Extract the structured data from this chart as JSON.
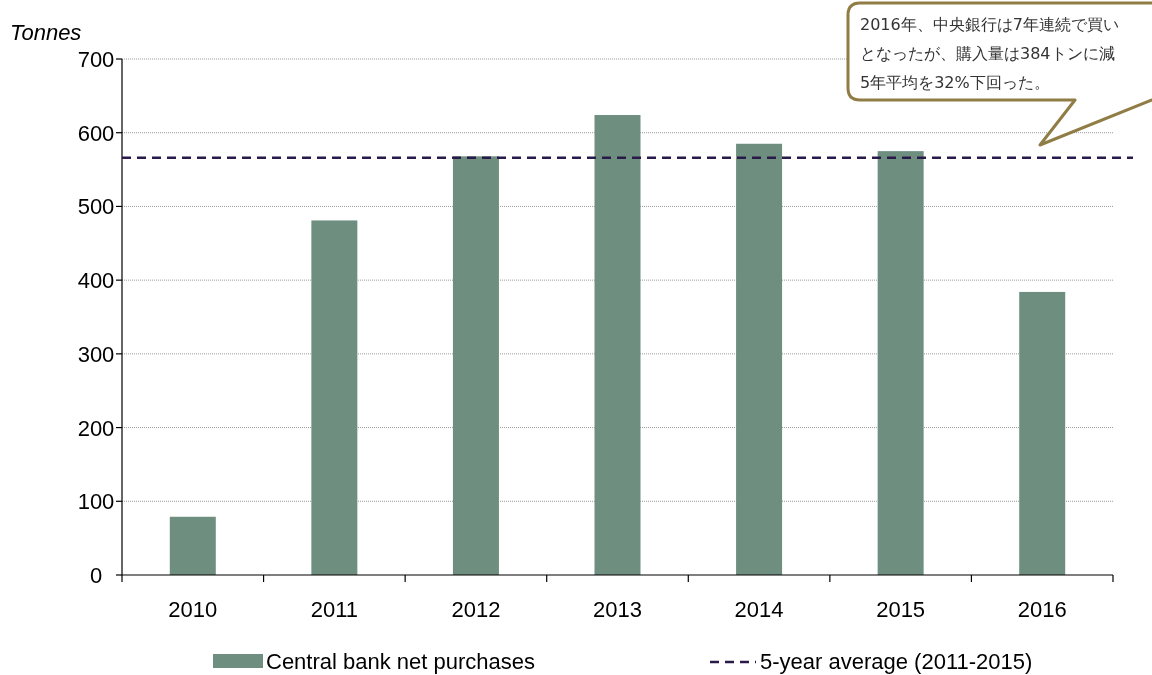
{
  "chart_data": {
    "type": "bar",
    "ylabel": "Tonnes",
    "categories": [
      "2010",
      "2011",
      "2012",
      "2013",
      "2014",
      "2015",
      "2016"
    ],
    "series": [
      {
        "name": "Central bank net purchases",
        "color": "#6e8f80",
        "values": [
          79,
          481,
          568,
          624,
          585,
          575,
          384
        ]
      }
    ],
    "ylim": [
      0,
      700
    ],
    "yticks": [
      0,
      100,
      200,
      300,
      400,
      500,
      600,
      700
    ],
    "grid": "y",
    "legend": "bottom",
    "ref_lines": [
      {
        "axis": "y",
        "value": 566,
        "label": "5-year average (2011-2015)",
        "color": "#2a1a4a",
        "line_style": "dashed"
      }
    ],
    "annotations": [
      "2016年、中央銀行は7年連続で買い",
      "となったが、購入量は384トンに減",
      "5年平均を32%下回った。"
    ]
  }
}
